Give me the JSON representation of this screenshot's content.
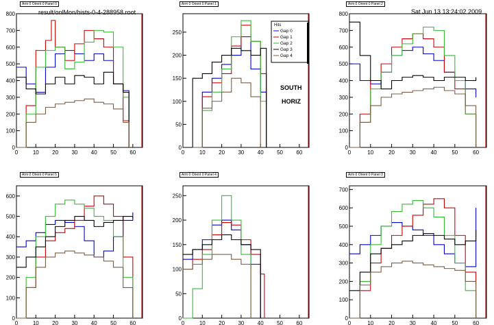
{
  "header": {
    "file": "result/onlMon/hists-0-4-288958.root",
    "date": "Sat Jun 13 13:24:02 2009"
  },
  "side_labels": {
    "arm": "SOUTH",
    "orient": "HORIZ"
  },
  "legend": {
    "title": "Hits",
    "entries": [
      "Gap 0",
      "Gap 1",
      "Gap 2",
      "Gap 3",
      "Gap 4"
    ]
  },
  "colors": {
    "Gap 0": "#0000cc",
    "Gap 1": "#cc0000",
    "Gap 2": "#33bb33",
    "Gap 3": "#000000",
    "Gap 4": "#7a5c45"
  },
  "chart_data": [
    {
      "type": "line",
      "title": "Arm 0 Orient 0 Panel 0",
      "xlim": [
        0,
        65
      ],
      "ylim": [
        0,
        800
      ],
      "xticks": [
        0,
        10,
        20,
        30,
        40,
        50,
        60
      ],
      "yticks": [
        0,
        100,
        200,
        300,
        400,
        500,
        600,
        700,
        800
      ],
      "series": [
        {
          "name": "Gap 0",
          "x": [
            0,
            5,
            10,
            15,
            20,
            25,
            30,
            35,
            40,
            45,
            50,
            55,
            58
          ],
          "values": [
            480,
            380,
            330,
            480,
            560,
            580,
            560,
            520,
            560,
            520,
            380,
            340,
            0
          ]
        },
        {
          "name": "Gap 1",
          "x": [
            0,
            5,
            10,
            15,
            18,
            20,
            25,
            30,
            35,
            40,
            45,
            50,
            55,
            58
          ],
          "values": [
            0,
            250,
            580,
            640,
            760,
            600,
            520,
            620,
            700,
            650,
            600,
            380,
            160,
            0
          ]
        },
        {
          "name": "Gap 2",
          "x": [
            0,
            5,
            10,
            15,
            20,
            25,
            30,
            35,
            40,
            45,
            50,
            55,
            58
          ],
          "values": [
            0,
            200,
            480,
            580,
            600,
            470,
            510,
            630,
            700,
            690,
            600,
            300,
            0
          ]
        },
        {
          "name": "Gap 3",
          "x": [
            0,
            5,
            10,
            15,
            20,
            25,
            30,
            35,
            40,
            45,
            50,
            55,
            58
          ],
          "values": [
            420,
            350,
            320,
            380,
            420,
            380,
            430,
            420,
            380,
            450,
            380,
            330,
            0
          ]
        },
        {
          "name": "Gap 4",
          "x": [
            0,
            5,
            10,
            15,
            20,
            25,
            30,
            35,
            40,
            45,
            50,
            55,
            58
          ],
          "values": [
            0,
            150,
            200,
            240,
            260,
            270,
            280,
            290,
            270,
            260,
            230,
            150,
            0
          ]
        }
      ]
    },
    {
      "type": "line",
      "title": "Arm 0 Orient 0 Panel 1",
      "xlim": [
        0,
        65
      ],
      "ylim": [
        0,
        290
      ],
      "xticks": [
        0,
        10,
        20,
        30,
        40,
        50,
        60
      ],
      "yticks": [
        0,
        50,
        100,
        150,
        200,
        250
      ],
      "series": [
        {
          "name": "Gap 0",
          "x": [
            5,
            10,
            15,
            20,
            25,
            30,
            35,
            40,
            43
          ],
          "values": [
            0,
            120,
            150,
            180,
            200,
            240,
            170,
            120,
            0
          ]
        },
        {
          "name": "Gap 1",
          "x": [
            5,
            10,
            15,
            20,
            25,
            30,
            35,
            40,
            43
          ],
          "values": [
            0,
            110,
            140,
            160,
            220,
            265,
            230,
            160,
            0
          ]
        },
        {
          "name": "Gap 2",
          "x": [
            5,
            10,
            15,
            20,
            25,
            30,
            35,
            40,
            43
          ],
          "values": [
            0,
            80,
            120,
            170,
            240,
            275,
            230,
            100,
            0
          ]
        },
        {
          "name": "Gap 3",
          "x": [
            3,
            5,
            10,
            15,
            20,
            25,
            30,
            35,
            40,
            43
          ],
          "values": [
            0,
            150,
            160,
            185,
            200,
            215,
            210,
            200,
            215,
            0
          ]
        },
        {
          "name": "Gap 4",
          "x": [
            5,
            10,
            15,
            20,
            25,
            30,
            35,
            40
          ],
          "values": [
            0,
            85,
            100,
            120,
            150,
            140,
            110,
            0
          ]
        }
      ]
    },
    {
      "type": "line",
      "title": "Arm 0 Orient 0 Panel 2",
      "xlim": [
        0,
        65
      ],
      "ylim": [
        0,
        800
      ],
      "xticks": [
        0,
        10,
        20,
        30,
        40,
        50,
        60
      ],
      "yticks": [
        0,
        100,
        200,
        300,
        400,
        500,
        600,
        700,
        800
      ],
      "series": [
        {
          "name": "Gap 0",
          "x": [
            0,
            5,
            10,
            15,
            20,
            25,
            30,
            35,
            40,
            45,
            50,
            55,
            60
          ],
          "values": [
            500,
            400,
            380,
            450,
            550,
            580,
            600,
            560,
            520,
            450,
            400,
            350,
            300
          ]
        },
        {
          "name": "Gap 1",
          "x": [
            0,
            5,
            10,
            15,
            20,
            25,
            30,
            35,
            40,
            45,
            50,
            55,
            60
          ],
          "values": [
            0,
            200,
            400,
            500,
            600,
            650,
            680,
            650,
            600,
            450,
            350,
            200,
            0
          ]
        },
        {
          "name": "Gap 2",
          "x": [
            0,
            5,
            10,
            15,
            20,
            25,
            30,
            35,
            40,
            45,
            50,
            55,
            60
          ],
          "values": [
            0,
            150,
            350,
            450,
            550,
            620,
            680,
            720,
            700,
            550,
            400,
            200,
            0
          ]
        },
        {
          "name": "Gap 3",
          "x": [
            0,
            5,
            10,
            15,
            20,
            25,
            30,
            35,
            40,
            45,
            50,
            55,
            60
          ],
          "values": [
            750,
            550,
            400,
            350,
            400,
            420,
            430,
            420,
            400,
            420,
            420,
            400,
            420
          ]
        },
        {
          "name": "Gap 4",
          "x": [
            0,
            5,
            10,
            15,
            20,
            25,
            30,
            35,
            40,
            45,
            50,
            55,
            60
          ],
          "values": [
            0,
            150,
            250,
            300,
            320,
            330,
            340,
            350,
            360,
            340,
            320,
            250,
            0
          ]
        }
      ]
    },
    {
      "type": "line",
      "title": "Arm 0 Orient 0 Panel 5",
      "xlim": [
        0,
        65
      ],
      "ylim": [
        0,
        650
      ],
      "xticks": [
        0,
        10,
        20,
        30,
        40,
        50,
        60
      ],
      "yticks": [
        0,
        100,
        200,
        300,
        400,
        500,
        600
      ],
      "series": [
        {
          "name": "Gap 0",
          "x": [
            0,
            5,
            10,
            15,
            20,
            25,
            30,
            35,
            40,
            45,
            50,
            55,
            60
          ],
          "values": [
            350,
            380,
            420,
            460,
            480,
            470,
            450,
            380,
            300,
            330,
            400,
            480,
            520
          ]
        },
        {
          "name": "Gap 1",
          "x": [
            0,
            5,
            10,
            15,
            20,
            25,
            30,
            35,
            40,
            45,
            50,
            55,
            60
          ],
          "values": [
            0,
            150,
            300,
            380,
            420,
            440,
            480,
            550,
            600,
            560,
            500,
            300,
            0
          ]
        },
        {
          "name": "Gap 2",
          "x": [
            0,
            5,
            10,
            15,
            20,
            25,
            30,
            35,
            40,
            45,
            50,
            55,
            60
          ],
          "values": [
            0,
            200,
            400,
            500,
            560,
            580,
            560,
            540,
            500,
            480,
            400,
            200,
            0
          ]
        },
        {
          "name": "Gap 3",
          "x": [
            0,
            5,
            10,
            15,
            20,
            25,
            30,
            35,
            40,
            45,
            50,
            55,
            60
          ],
          "values": [
            250,
            300,
            350,
            400,
            450,
            480,
            500,
            480,
            450,
            470,
            480,
            500,
            490
          ]
        },
        {
          "name": "Gap 4",
          "x": [
            0,
            5,
            10,
            15,
            20,
            25,
            30,
            35,
            40,
            45,
            50,
            55,
            60
          ],
          "values": [
            0,
            150,
            250,
            300,
            320,
            330,
            320,
            310,
            300,
            280,
            250,
            150,
            0
          ]
        }
      ]
    },
    {
      "type": "line",
      "title": "Arm 0 Orient 0 Panel 4",
      "xlim": [
        0,
        65
      ],
      "ylim": [
        0,
        270
      ],
      "xticks": [
        0,
        10,
        20,
        30,
        40,
        50,
        60
      ],
      "yticks": [
        0,
        50,
        100,
        150,
        200,
        250
      ],
      "series": [
        {
          "name": "Gap 0",
          "x": [
            0,
            5,
            10,
            15,
            20,
            25,
            30,
            35,
            40
          ],
          "values": [
            120,
            140,
            160,
            190,
            200,
            180,
            150,
            110,
            0
          ]
        },
        {
          "name": "Gap 1",
          "x": [
            0,
            5,
            10,
            15,
            20,
            25,
            30,
            35,
            40,
            42
          ],
          "values": [
            100,
            120,
            140,
            170,
            195,
            190,
            160,
            130,
            90,
            0
          ]
        },
        {
          "name": "Gap 2",
          "x": [
            0,
            5,
            10,
            15,
            20,
            25,
            30,
            35
          ],
          "values": [
            0,
            60,
            130,
            200,
            250,
            200,
            130,
            0
          ]
        },
        {
          "name": "Gap 3",
          "x": [
            0,
            5,
            10,
            15,
            20,
            25,
            30,
            35,
            40
          ],
          "values": [
            130,
            140,
            150,
            160,
            170,
            160,
            150,
            140,
            0
          ]
        },
        {
          "name": "Gap 4",
          "x": [
            0,
            5,
            10,
            15,
            20,
            25,
            30,
            35
          ],
          "values": [
            100,
            110,
            120,
            130,
            130,
            120,
            110,
            0
          ]
        }
      ]
    },
    {
      "type": "line",
      "title": "Arm 0 Orient 0 Panel 3",
      "xlim": [
        0,
        65
      ],
      "ylim": [
        0,
        720
      ],
      "xticks": [
        0,
        10,
        20,
        30,
        40,
        50,
        60
      ],
      "yticks": [
        0,
        100,
        200,
        300,
        400,
        500,
        600,
        700
      ],
      "series": [
        {
          "name": "Gap 0",
          "x": [
            0,
            5,
            10,
            15,
            20,
            25,
            30,
            35,
            40,
            45,
            50,
            55,
            60
          ],
          "values": [
            350,
            400,
            450,
            500,
            520,
            500,
            480,
            450,
            400,
            350,
            300,
            280,
            600
          ]
        },
        {
          "name": "Gap 1",
          "x": [
            0,
            5,
            10,
            15,
            20,
            25,
            30,
            35,
            40,
            45,
            50,
            55,
            60
          ],
          "values": [
            0,
            150,
            300,
            380,
            450,
            500,
            560,
            620,
            650,
            600,
            450,
            250,
            0
          ]
        },
        {
          "name": "Gap 2",
          "x": [
            0,
            5,
            10,
            15,
            20,
            25,
            30,
            35,
            40,
            45,
            50,
            55,
            60
          ],
          "values": [
            0,
            200,
            400,
            500,
            580,
            620,
            640,
            600,
            550,
            450,
            300,
            150,
            0
          ]
        },
        {
          "name": "Gap 3",
          "x": [
            0,
            5,
            10,
            15,
            20,
            25,
            30,
            35,
            40,
            45,
            50,
            55,
            60
          ],
          "values": [
            150,
            250,
            350,
            380,
            400,
            420,
            450,
            460,
            450,
            430,
            400,
            420,
            480
          ]
        },
        {
          "name": "Gap 4",
          "x": [
            0,
            5,
            10,
            15,
            20,
            25,
            30,
            35,
            40,
            45,
            50,
            55,
            60
          ],
          "values": [
            0,
            180,
            250,
            280,
            300,
            310,
            300,
            290,
            280,
            270,
            260,
            200,
            0
          ]
        }
      ]
    }
  ]
}
